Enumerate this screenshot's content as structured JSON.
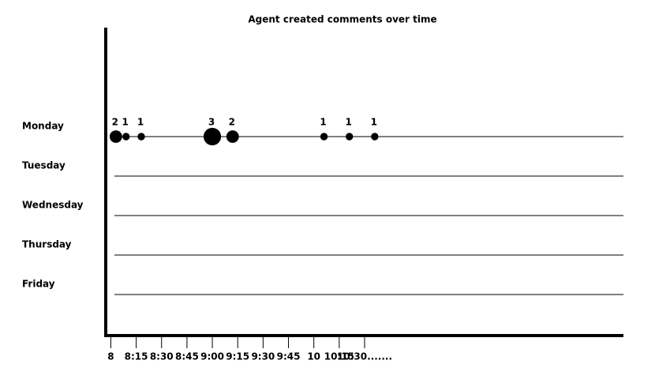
{
  "chart_data": {
    "type": "bubble",
    "title": "Agent created comments over time",
    "categories": [
      "Monday",
      "Tuesday",
      "Wednesday",
      "Thursday",
      "Friday"
    ],
    "x": [
      8.05,
      8.15,
      8.3,
      9.0,
      9.2,
      10.1,
      10.35,
      10.6
    ],
    "y": [
      "Monday",
      "Monday",
      "Monday",
      "Monday",
      "Monday",
      "Monday",
      "Monday",
      "Monday"
    ],
    "values": [
      2,
      1,
      1,
      3,
      2,
      1,
      1,
      1
    ],
    "color": "#000000",
    "xlim": [
      7.95,
      13.05
    ],
    "xticks": [
      8,
      {
        "value": 8.25,
        "label": "8:15"
      },
      {
        "value": 8.5,
        "label": "8:30"
      },
      {
        "value": 8.75,
        "label": "8:45"
      },
      {
        "value": 9.0,
        "label": "9:00"
      },
      {
        "value": 9.25,
        "label": "9:15"
      },
      {
        "value": 9.5,
        "label": "9:30"
      },
      {
        "value": 9.75,
        "label": "9:45"
      },
      10,
      {
        "value": 10.25,
        "label": "10:15"
      },
      {
        "value": 10.5,
        "label": "10:30......."
      }
    ]
  }
}
